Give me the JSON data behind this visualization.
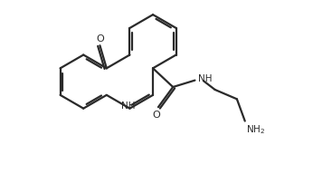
{
  "bg": "#ffffff",
  "bond_color": "#2a2a2a",
  "text_color": "#2a2a2a",
  "lw": 1.6,
  "fs": 7.5,
  "xlim": [
    -0.5,
    8.5
  ],
  "ylim": [
    -2.2,
    4.2
  ],
  "figsize": [
    3.46,
    1.92
  ],
  "dpi": 100
}
